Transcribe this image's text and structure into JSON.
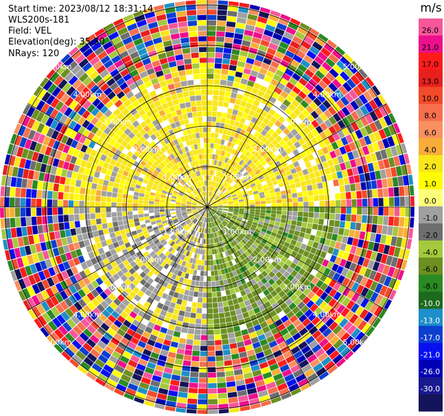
{
  "header": {
    "start_time": "Start time: 2023/08/12 18:31:14",
    "instrument": "WLS200s-181",
    "field": "Field: VEL",
    "elevation": "Elevation(deg): 35.30",
    "nrays": "NRays: 120"
  },
  "colorbar": {
    "unit": "m/s",
    "ticks": [
      "26.0",
      "21.0",
      "17.0",
      "13.0",
      "10.0",
      "8.0",
      "6.0",
      "4.0",
      "2.0",
      "1.0",
      "0.0",
      "-1.0",
      "-2.0",
      "-4.0",
      "-6.0",
      "-8.0",
      "-10.0",
      "-13.0",
      "-17.0",
      "-21.0",
      "-26.0",
      "-30.0"
    ],
    "colors": [
      "#f7569a",
      "#ee0f8c",
      "#ff1b1b",
      "#e8201d",
      "#f34a2a",
      "#f66e4e",
      "#f89060",
      "#f8ad3a",
      "#f8e61a",
      "#fffe00",
      "#ffff7a",
      "#a0a0a0",
      "#6e6e6e",
      "#a4c93c",
      "#6d8f22",
      "#2a8a23",
      "#1d6a1e",
      "#1e8fc8",
      "#0b3fd0",
      "#0810f0",
      "#0000b4",
      "#1a1a90",
      "#14145a"
    ]
  },
  "chart_data": {
    "type": "ppi",
    "field": "VEL",
    "unit": "m/s",
    "nrays": 120,
    "elevation_deg": 35.3,
    "range_rings_km": [
      1.0,
      2.0,
      3.0,
      4.0,
      5.0
    ],
    "ring_labels": [
      "1.00km",
      "2.00km",
      "3.00km",
      "4.00km",
      "5.00km"
    ],
    "color_levels": [
      -30.0,
      -26.0,
      -21.0,
      -17.0,
      -13.0,
      -10.0,
      -8.0,
      -6.0,
      -4.0,
      -2.0,
      -1.0,
      0.0,
      1.0,
      2.0,
      4.0,
      6.0,
      8.0,
      10.0,
      13.0,
      17.0,
      21.0,
      26.0
    ]
  }
}
